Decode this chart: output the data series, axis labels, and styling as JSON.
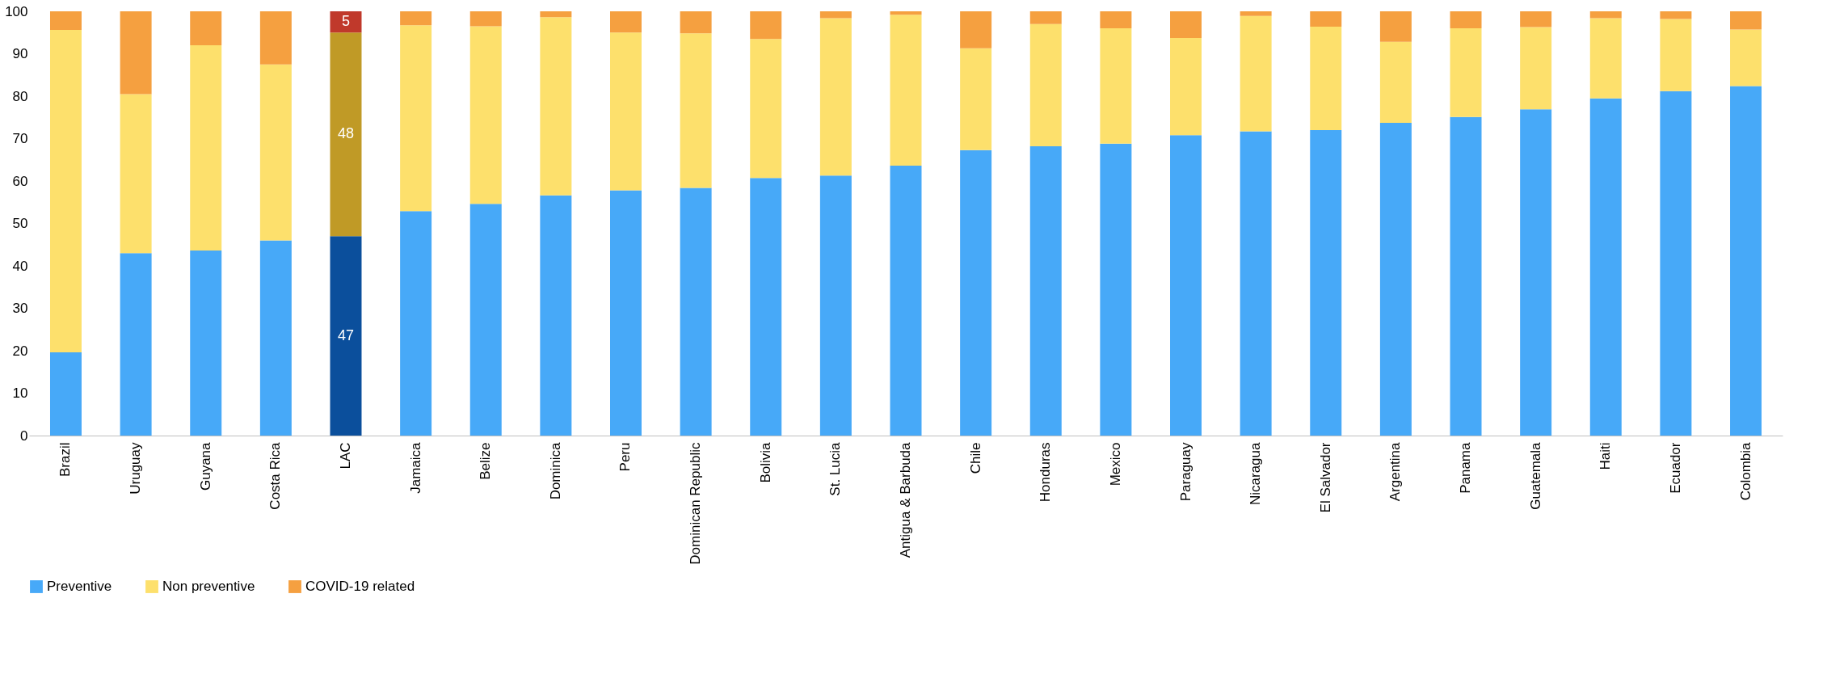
{
  "chart_data": {
    "type": "bar",
    "stacked": true,
    "categories": [
      "Brazil",
      "Uruguay",
      "Guyana",
      "Costa Rica",
      "LAC",
      "Jamaica",
      "Belize",
      "Dominica",
      "Peru",
      "Dominican Republic",
      "Bolivia",
      "St. Lucia",
      "Antigua & Barbuda",
      "Chile",
      "Honduras",
      "Mexico",
      "Paraguay",
      "Nicaragua",
      "El Salvador",
      "Argentina",
      "Panama",
      "Guatemala",
      "Haiti",
      "Ecuador",
      "Colombia"
    ],
    "series": [
      {
        "name": "Preventive",
        "color": "#47a9f8",
        "colors": [
          "#47a9f8",
          "#47a9f8",
          "#47a9f8",
          "#47a9f8",
          "#0b4f9c",
          "#47a9f8",
          "#47a9f8",
          "#47a9f8",
          "#47a9f8",
          "#47a9f8",
          "#47a9f8",
          "#47a9f8",
          "#47a9f8",
          "#47a9f8",
          "#47a9f8",
          "#47a9f8",
          "#47a9f8",
          "#47a9f8",
          "#47a9f8",
          "#47a9f8",
          "#47a9f8",
          "#47a9f8",
          "#47a9f8",
          "#47a9f8",
          "#47a9f8"
        ],
        "values": [
          19.6,
          43.0,
          43.6,
          46.0,
          47,
          52.9,
          54.6,
          56.6,
          57.8,
          58.4,
          60.7,
          61.3,
          63.6,
          67.3,
          68.2,
          68.8,
          70.8,
          71.7,
          72.0,
          73.7,
          75.1,
          76.9,
          79.5,
          81.2,
          82.4
        ],
        "value_labels": [
          null,
          null,
          null,
          null,
          "47",
          null,
          null,
          null,
          null,
          null,
          null,
          null,
          null,
          null,
          null,
          null,
          null,
          null,
          null,
          null,
          null,
          null,
          null,
          null,
          null
        ]
      },
      {
        "name": "Non preventive",
        "color": "#fde06c",
        "colors": [
          "#fde06c",
          "#fde06c",
          "#fde06c",
          "#fde06c",
          "#c09a26",
          "#fde06c",
          "#fde06c",
          "#fde06c",
          "#fde06c",
          "#fde06c",
          "#fde06c",
          "#fde06c",
          "#fde06c",
          "#fde06c",
          "#fde06c",
          "#fde06c",
          "#fde06c",
          "#fde06c",
          "#fde06c",
          "#fde06c",
          "#fde06c",
          "#fde06c",
          "#fde06c",
          "#fde06c",
          "#fde06c"
        ],
        "values": [
          76.0,
          37.5,
          48.4,
          41.5,
          48,
          43.8,
          41.9,
          42.0,
          37.2,
          36.4,
          32.8,
          37.1,
          35.6,
          24.0,
          28.8,
          27.2,
          22.9,
          27.2,
          24.4,
          19.1,
          20.9,
          19.4,
          18.9,
          17.0,
          13.3
        ],
        "value_labels": [
          null,
          null,
          null,
          null,
          "48",
          null,
          null,
          null,
          null,
          null,
          null,
          null,
          null,
          null,
          null,
          null,
          null,
          null,
          null,
          null,
          null,
          null,
          null,
          null,
          null
        ]
      },
      {
        "name": "COVID-19 related",
        "color": "#f5a040",
        "colors": [
          "#f5a040",
          "#f5a040",
          "#f5a040",
          "#f5a040",
          "#c0392b",
          "#f5a040",
          "#f5a040",
          "#f5a040",
          "#f5a040",
          "#f5a040",
          "#f5a040",
          "#f5a040",
          "#f5a040",
          "#f5a040",
          "#f5a040",
          "#f5a040",
          "#f5a040",
          "#f5a040",
          "#f5a040",
          "#f5a040",
          "#f5a040",
          "#f5a040",
          "#f5a040",
          "#f5a040",
          "#f5a040"
        ],
        "values": [
          4.4,
          19.5,
          8.0,
          12.5,
          5,
          3.3,
          3.5,
          1.4,
          5.0,
          5.2,
          6.5,
          1.6,
          0.8,
          8.7,
          3.0,
          4.0,
          6.3,
          1.1,
          3.6,
          7.2,
          4.0,
          3.7,
          1.6,
          1.8,
          4.3
        ],
        "value_labels": [
          null,
          null,
          null,
          null,
          "5",
          null,
          null,
          null,
          null,
          null,
          null,
          null,
          null,
          null,
          null,
          null,
          null,
          null,
          null,
          null,
          null,
          null,
          null,
          null,
          null
        ]
      }
    ],
    "ylim": [
      0,
      100
    ],
    "yticks": [
      0,
      10,
      20,
      30,
      40,
      50,
      60,
      70,
      80,
      90,
      100
    ],
    "grid": false,
    "legend": "bottom"
  }
}
